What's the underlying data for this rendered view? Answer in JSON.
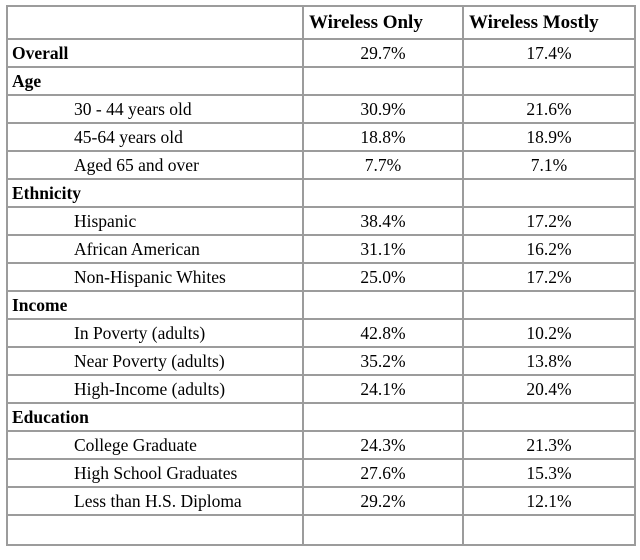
{
  "styles": {
    "border_color": "#9c9c9c",
    "text_color": "#000000",
    "background": "#ffffff"
  },
  "chart_data": {
    "type": "table",
    "columns": [
      "",
      "Wireless Only",
      "Wireless Mostly"
    ],
    "rows": [
      {
        "label": "Overall",
        "kind": "section",
        "wireless_only": "29.7%",
        "wireless_mostly": "17.4%"
      },
      {
        "label": "Age",
        "kind": "section",
        "wireless_only": "",
        "wireless_mostly": ""
      },
      {
        "label": "30 - 44 years old",
        "kind": "item",
        "wireless_only": "30.9%",
        "wireless_mostly": "21.6%"
      },
      {
        "label": "45-64 years old",
        "kind": "item",
        "wireless_only": "18.8%",
        "wireless_mostly": "18.9%"
      },
      {
        "label": "Aged 65 and over",
        "kind": "item",
        "wireless_only": "7.7%",
        "wireless_mostly": "7.1%"
      },
      {
        "label": "Ethnicity",
        "kind": "section",
        "wireless_only": "",
        "wireless_mostly": ""
      },
      {
        "label": "Hispanic",
        "kind": "item",
        "wireless_only": "38.4%",
        "wireless_mostly": "17.2%"
      },
      {
        "label": "African American",
        "kind": "item",
        "wireless_only": "31.1%",
        "wireless_mostly": "16.2%"
      },
      {
        "label": "Non-Hispanic Whites",
        "kind": "item",
        "wireless_only": "25.0%",
        "wireless_mostly": "17.2%"
      },
      {
        "label": "Income",
        "kind": "section",
        "wireless_only": "",
        "wireless_mostly": ""
      },
      {
        "label": "In Poverty (adults)",
        "kind": "item",
        "wireless_only": "42.8%",
        "wireless_mostly": "10.2%"
      },
      {
        "label": "Near Poverty (adults)",
        "kind": "item",
        "wireless_only": "35.2%",
        "wireless_mostly": "13.8%"
      },
      {
        "label": "High-Income (adults)",
        "kind": "item",
        "wireless_only": "24.1%",
        "wireless_mostly": "20.4%"
      },
      {
        "label": "Education",
        "kind": "section",
        "wireless_only": "",
        "wireless_mostly": ""
      },
      {
        "label": "College Graduate",
        "kind": "item",
        "wireless_only": "24.3%",
        "wireless_mostly": "21.3%"
      },
      {
        "label": "High School Graduates",
        "kind": "item",
        "wireless_only": "27.6%",
        "wireless_mostly": "15.3%"
      },
      {
        "label": "Less than H.S. Diploma",
        "kind": "item",
        "wireless_only": "29.2%",
        "wireless_mostly": "12.1%"
      },
      {
        "label": "",
        "kind": "empty",
        "wireless_only": "",
        "wireless_mostly": ""
      }
    ]
  }
}
